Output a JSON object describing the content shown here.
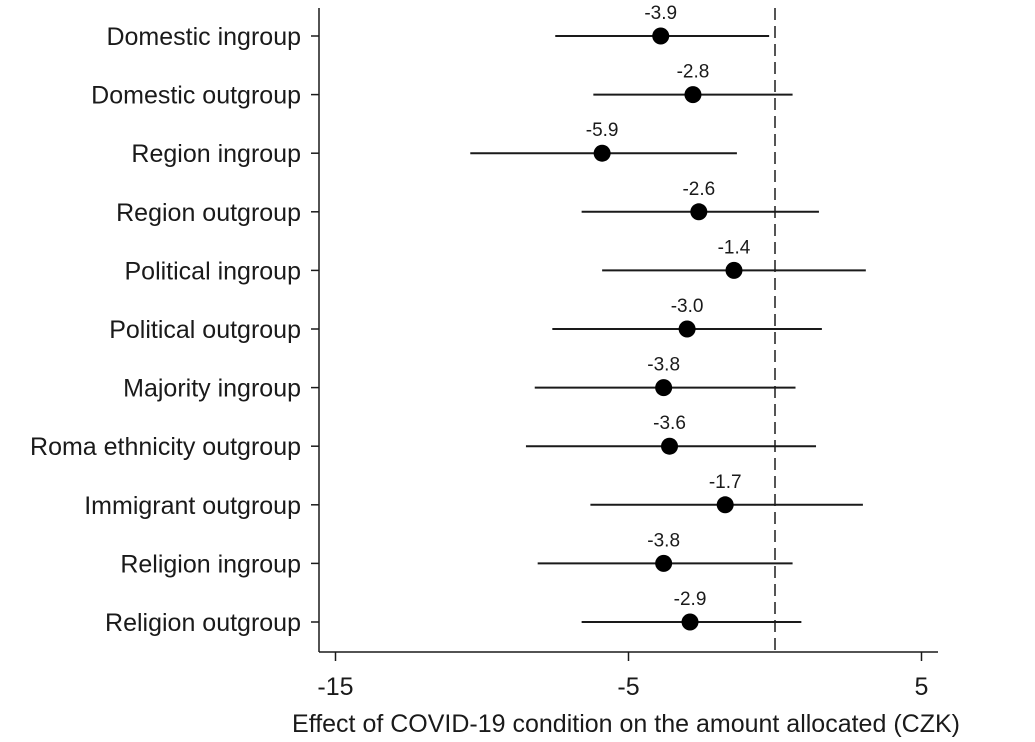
{
  "chart_data": {
    "type": "scatter",
    "orientation": "horizontal",
    "xlabel": "Effect of COVID-19 condition on the amount allocated (CZK)",
    "xticks": [
      -15,
      -5,
      5
    ],
    "xlim": [
      -15.5,
      5
    ],
    "reference_line": {
      "x": 0,
      "style": "dashed"
    },
    "categories": [
      "Domestic ingroup",
      "Domestic outgroup",
      "Region ingroup",
      "Region outgroup",
      "Political ingroup",
      "Political outgroup",
      "Majority ingroup",
      "Roma ethnicity outgroup",
      "Immigrant outgroup",
      "Religion ingroup",
      "Religion outgroup"
    ],
    "estimates": [
      -3.9,
      -2.8,
      -5.9,
      -2.6,
      -1.4,
      -3.0,
      -3.8,
      -3.6,
      -1.7,
      -3.8,
      -2.9
    ],
    "labels": [
      "-3.9",
      "-2.8",
      "-5.9",
      "-2.6",
      "-1.4",
      "-3.0",
      "-3.8",
      "-3.6",
      "-1.7",
      "-3.8",
      "-2.9"
    ],
    "ci_lower": [
      -7.5,
      -6.2,
      -10.4,
      -6.6,
      -5.9,
      -7.6,
      -8.2,
      -8.5,
      -6.3,
      -8.1,
      -6.6
    ],
    "ci_upper": [
      -0.2,
      0.6,
      -1.3,
      1.5,
      3.1,
      1.6,
      0.7,
      1.4,
      3.0,
      0.6,
      0.9
    ],
    "grid": false,
    "legend": "none"
  }
}
